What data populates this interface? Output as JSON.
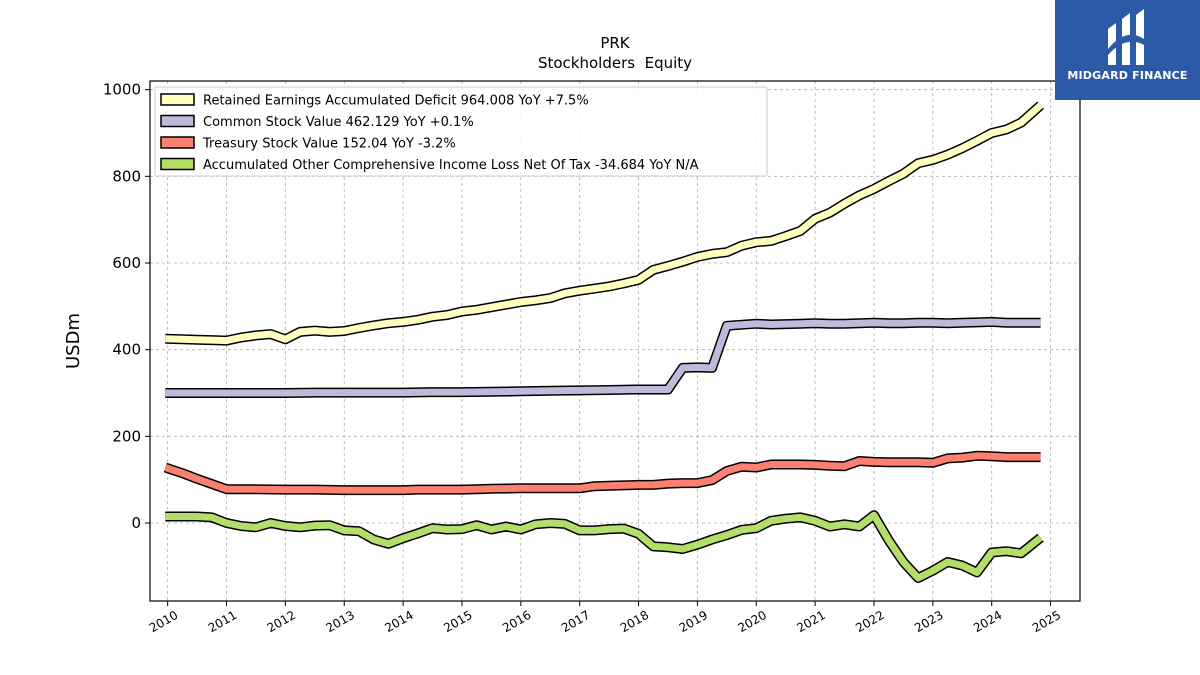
{
  "chart_data": {
    "type": "line",
    "title": "PRK",
    "subtitle": "Stockholders  Equity",
    "ylabel": "USDm",
    "xlabel": "",
    "xlim": [
      2009.7,
      2025.5
    ],
    "ylim": [
      -180,
      1020
    ],
    "yticks": [
      0,
      200,
      400,
      600,
      800,
      1000
    ],
    "xticks": [
      2010,
      2011,
      2012,
      2013,
      2014,
      2015,
      2016,
      2017,
      2018,
      2019,
      2020,
      2021,
      2022,
      2023,
      2024,
      2025
    ],
    "grid": true,
    "legend_position": "top-left",
    "series": [
      {
        "name": "Retained Earnings Accumulated Deficit  964.008 YoY +7.5%",
        "color": "#ffffbf",
        "x": [
          2009.96,
          2010.25,
          2010.5,
          2010.75,
          2011.0,
          2011.25,
          2011.5,
          2011.75,
          2012.0,
          2012.25,
          2012.5,
          2012.75,
          2013.0,
          2013.25,
          2013.5,
          2013.75,
          2014.0,
          2014.25,
          2014.5,
          2014.75,
          2015.0,
          2015.25,
          2015.5,
          2015.75,
          2016.0,
          2016.25,
          2016.5,
          2016.75,
          2017.0,
          2017.25,
          2017.5,
          2017.75,
          2018.0,
          2018.25,
          2018.5,
          2018.75,
          2019.0,
          2019.25,
          2019.5,
          2019.75,
          2020.0,
          2020.25,
          2020.5,
          2020.75,
          2021.0,
          2021.25,
          2021.5,
          2021.75,
          2022.0,
          2022.25,
          2022.5,
          2022.75,
          2023.0,
          2023.25,
          2023.5,
          2023.75,
          2024.0,
          2024.25,
          2024.5,
          2024.83
        ],
        "values": [
          425,
          424,
          423,
          422,
          421,
          428,
          433,
          436,
          424,
          441,
          444,
          441,
          443,
          450,
          456,
          461,
          464,
          469,
          476,
          480,
          488,
          492,
          498,
          504,
          510,
          514,
          519,
          530,
          536,
          541,
          546,
          553,
          561,
          584,
          593,
          603,
          614,
          621,
          625,
          640,
          648,
          651,
          662,
          674,
          702,
          716,
          737,
          756,
          771,
          789,
          806,
          830,
          838,
          850,
          865,
          882,
          900,
          908,
          924,
          964
        ]
      },
      {
        "name": "Common Stock Value  462.129 YoY +0.1%",
        "color": "#bebada",
        "x": [
          2009.96,
          2010.5,
          2011.0,
          2011.5,
          2012.0,
          2012.5,
          2013.0,
          2013.5,
          2014.0,
          2014.5,
          2015.0,
          2015.5,
          2016.0,
          2016.5,
          2017.0,
          2017.5,
          2018.0,
          2018.5,
          2018.75,
          2019.0,
          2019.25,
          2019.5,
          2020.0,
          2020.25,
          2020.5,
          2020.75,
          2021.0,
          2021.25,
          2021.5,
          2021.75,
          2022.0,
          2022.25,
          2022.5,
          2022.75,
          2023.0,
          2023.25,
          2023.5,
          2023.75,
          2024.0,
          2024.25,
          2024.5,
          2024.83
        ],
        "values": [
          300,
          300,
          300,
          300,
          300,
          301,
          301,
          301,
          301,
          302,
          302,
          303,
          304,
          305,
          306,
          307,
          308,
          308,
          358,
          359,
          358,
          455,
          460,
          458,
          459,
          460,
          461,
          460,
          460,
          461,
          462,
          461,
          461,
          462,
          462,
          461,
          462,
          463,
          464,
          462,
          462,
          462
        ]
      },
      {
        "name": "Treasury Stock Value  152.04 YoY -3.2%",
        "color": "#fb8072",
        "x": [
          2009.96,
          2010.25,
          2010.5,
          2010.75,
          2011.0,
          2011.5,
          2012.0,
          2012.5,
          2013.0,
          2013.5,
          2014.0,
          2014.25,
          2014.5,
          2015.0,
          2015.25,
          2015.5,
          2016.0,
          2016.5,
          2017.0,
          2017.25,
          2017.5,
          2018.0,
          2018.25,
          2018.5,
          2018.75,
          2019.0,
          2019.25,
          2019.5,
          2019.75,
          2020.0,
          2020.25,
          2020.5,
          2020.75,
          2021.0,
          2021.25,
          2021.5,
          2021.75,
          2022.0,
          2022.25,
          2022.5,
          2022.75,
          2023.0,
          2023.25,
          2023.5,
          2023.75,
          2024.0,
          2024.25,
          2024.5,
          2024.83
        ],
        "values": [
          128,
          115,
          102,
          90,
          78,
          78,
          77,
          77,
          76,
          76,
          76,
          77,
          77,
          77,
          78,
          79,
          80,
          80,
          80,
          85,
          86,
          88,
          88,
          91,
          92,
          92,
          99,
          120,
          130,
          128,
          135,
          135,
          135,
          134,
          132,
          131,
          143,
          141,
          140,
          140,
          140,
          139,
          149,
          151,
          155,
          154,
          152,
          152,
          152
        ]
      },
      {
        "name": "Accumulated Other Comprehensive Income Loss Net Of Tax  -34.684 YoY N/A",
        "color": "#b3de69",
        "x": [
          2009.96,
          2010.25,
          2010.5,
          2010.75,
          2011.0,
          2011.25,
          2011.5,
          2011.75,
          2012.0,
          2012.25,
          2012.5,
          2012.75,
          2013.0,
          2013.25,
          2013.5,
          2013.75,
          2014.0,
          2014.25,
          2014.5,
          2014.75,
          2015.0,
          2015.25,
          2015.5,
          2015.75,
          2016.0,
          2016.25,
          2016.5,
          2016.75,
          2017.0,
          2017.25,
          2017.5,
          2017.75,
          2018.0,
          2018.25,
          2018.5,
          2018.75,
          2019.0,
          2019.25,
          2019.5,
          2019.75,
          2020.0,
          2020.25,
          2020.5,
          2020.75,
          2021.0,
          2021.25,
          2021.5,
          2021.75,
          2022.0,
          2022.25,
          2022.5,
          2022.75,
          2023.0,
          2023.25,
          2023.5,
          2023.75,
          2024.0,
          2024.25,
          2024.5,
          2024.83
        ],
        "values": [
          15,
          15,
          15,
          13,
          0,
          -7,
          -10,
          0,
          -7,
          -10,
          -6,
          -5,
          -17,
          -19,
          -38,
          -48,
          -35,
          -24,
          -12,
          -15,
          -14,
          -5,
          -15,
          -8,
          -15,
          -3,
          0,
          -2,
          -17,
          -17,
          -14,
          -13,
          -25,
          -54,
          -56,
          -60,
          -50,
          -38,
          -28,
          -16,
          -12,
          5,
          10,
          13,
          5,
          -8,
          -3,
          -8,
          18,
          -40,
          -90,
          -127,
          -110,
          -90,
          -98,
          -114,
          -68,
          -65,
          -70,
          -34
        ]
      }
    ]
  },
  "logo": {
    "text": "MIDGARD FINANCE"
  },
  "colors": {
    "background": "#ffffff",
    "logo_background": "#2d5aa6",
    "grid": "#b0b0b0"
  }
}
